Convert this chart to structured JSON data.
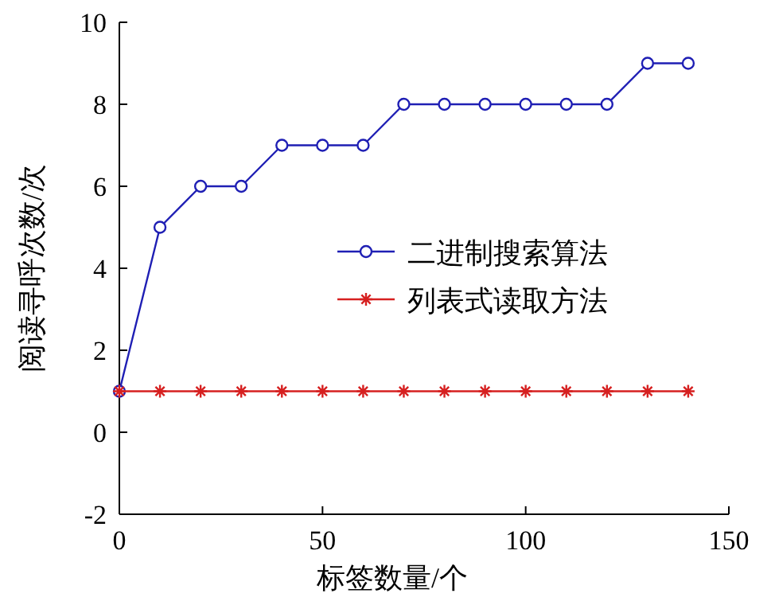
{
  "chart_data": {
    "type": "line",
    "xlabel": "标签数量/个",
    "ylabel": "阅读寻呼次数/次",
    "x": [
      0,
      10,
      20,
      30,
      40,
      50,
      60,
      70,
      80,
      90,
      100,
      110,
      120,
      130,
      140
    ],
    "series": [
      {
        "name": "二进制搜索算法",
        "color": "#1f1fb4",
        "marker": "circle",
        "values": [
          1,
          5,
          6,
          6,
          7,
          7,
          7,
          8,
          8,
          8,
          8,
          8,
          8,
          9,
          9
        ]
      },
      {
        "name": "列表式读取方法",
        "color": "#d62020",
        "marker": "cross",
        "values": [
          1,
          1,
          1,
          1,
          1,
          1,
          1,
          1,
          1,
          1,
          1,
          1,
          1,
          1,
          1
        ]
      }
    ],
    "xlim": [
      0,
      150
    ],
    "ylim": [
      -2,
      10
    ],
    "xticks": [
      0,
      50,
      100,
      150
    ],
    "yticks": [
      -2,
      0,
      2,
      4,
      6,
      8,
      10
    ],
    "legend": "right",
    "line_style": "solid"
  }
}
